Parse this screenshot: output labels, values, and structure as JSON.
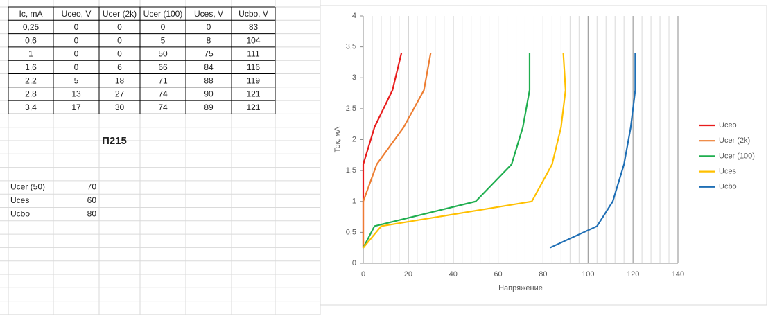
{
  "table": {
    "header": [
      "Ic, mA",
      "Uceo, V",
      "Ucer (2k)",
      "Ucer (100)",
      "Uces, V",
      "Ucbo, V"
    ],
    "rows": [
      [
        "0,25",
        "0",
        "0",
        "0",
        "0",
        "83"
      ],
      [
        "0,6",
        "0",
        "0",
        "5",
        "8",
        "104"
      ],
      [
        "1",
        "0",
        "0",
        "50",
        "75",
        "111"
      ],
      [
        "1,6",
        "0",
        "6",
        "66",
        "84",
        "116"
      ],
      [
        "2,2",
        "5",
        "18",
        "71",
        "88",
        "119"
      ],
      [
        "2,8",
        "13",
        "27",
        "74",
        "90",
        "121"
      ],
      [
        "3,4",
        "17",
        "30",
        "74",
        "89",
        "121"
      ]
    ]
  },
  "label": "П215",
  "extras": [
    {
      "name": "Ucer (50)",
      "value": "70"
    },
    {
      "name": "Uces",
      "value": "60"
    },
    {
      "name": "Ucbo",
      "value": "80"
    }
  ],
  "chart_data": {
    "type": "line",
    "x_label": "Напряжение",
    "y_label": "Ток, мА",
    "xlim": [
      0,
      140
    ],
    "xticks": [
      0,
      20,
      40,
      60,
      80,
      100,
      120,
      140
    ],
    "xminorticks": [
      4,
      8,
      12,
      16,
      24,
      28,
      32,
      36,
      44,
      48,
      52,
      56,
      64,
      68,
      72,
      76,
      84,
      88,
      92,
      96,
      104,
      108,
      112,
      116,
      124,
      128,
      132,
      136
    ],
    "ylim": [
      0,
      4
    ],
    "yticks": [
      0,
      {
        "value": 0.5,
        "label": "0,5"
      },
      1,
      {
        "value": 1.5,
        "label": "1,5"
      },
      2,
      {
        "value": 2.5,
        "label": "2,5"
      },
      3,
      {
        "value": 3.5,
        "label": "3,5"
      },
      4
    ],
    "grid": true,
    "legend": "right",
    "series": [
      {
        "name": "Uceo",
        "color": "#e81c1c",
        "x": [
          0,
          0,
          0,
          0,
          5,
          13,
          17
        ],
        "values": [
          0.25,
          0.6,
          1,
          1.6,
          2.2,
          2.8,
          3.4
        ]
      },
      {
        "name": "Ucer (2k)",
        "color": "#ed7d31",
        "x": [
          0,
          0,
          0,
          6,
          18,
          27,
          30
        ],
        "values": [
          0.25,
          0.6,
          1,
          1.6,
          2.2,
          2.8,
          3.4
        ]
      },
      {
        "name": "Ucer (100)",
        "color": "#1fae4f",
        "x": [
          0,
          5,
          50,
          66,
          71,
          74,
          74
        ],
        "values": [
          0.25,
          0.6,
          1,
          1.6,
          2.2,
          2.8,
          3.4
        ]
      },
      {
        "name": "Uces",
        "color": "#ffc000",
        "x": [
          0,
          8,
          75,
          84,
          88,
          90,
          89
        ],
        "values": [
          0.25,
          0.6,
          1,
          1.6,
          2.2,
          2.8,
          3.4
        ]
      },
      {
        "name": "Ucbo",
        "color": "#1f6fb5",
        "x": [
          83,
          104,
          111,
          116,
          119,
          121,
          121
        ],
        "values": [
          0.25,
          0.6,
          1,
          1.6,
          2.2,
          2.8,
          3.4
        ]
      }
    ]
  }
}
